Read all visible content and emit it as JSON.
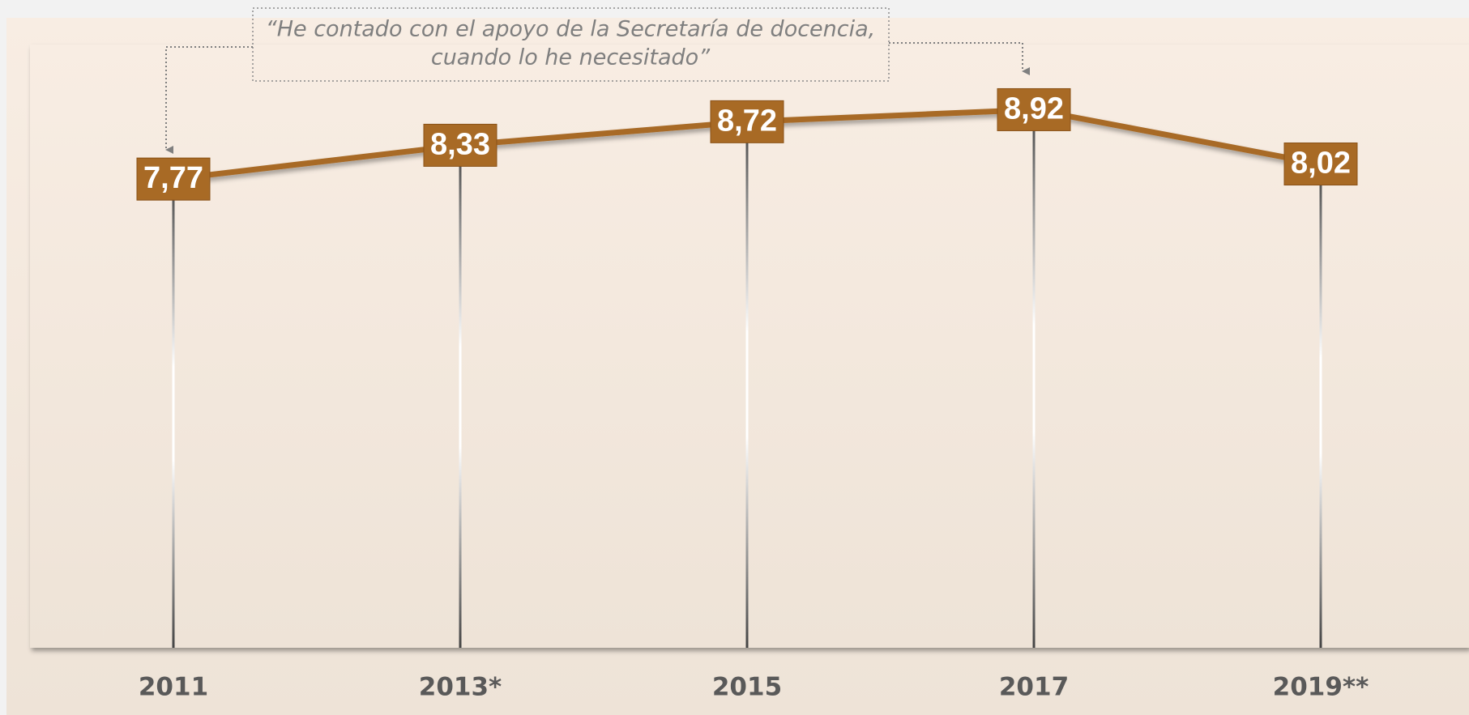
{
  "chart_data": {
    "type": "line",
    "annotation": [
      "“He contado con el apoyo de la Secretaría de docencia,",
      "cuando lo he necesitado”"
    ],
    "categories": [
      "2011",
      "2013*",
      "2015",
      "2017",
      "2019**"
    ],
    "values": [
      7.77,
      8.33,
      8.72,
      8.92,
      8.02
    ],
    "value_labels": [
      "7,77",
      "8,33",
      "8,72",
      "8,92",
      "8,02"
    ],
    "color": "#a86a25",
    "ylim": [
      0,
      10
    ]
  }
}
